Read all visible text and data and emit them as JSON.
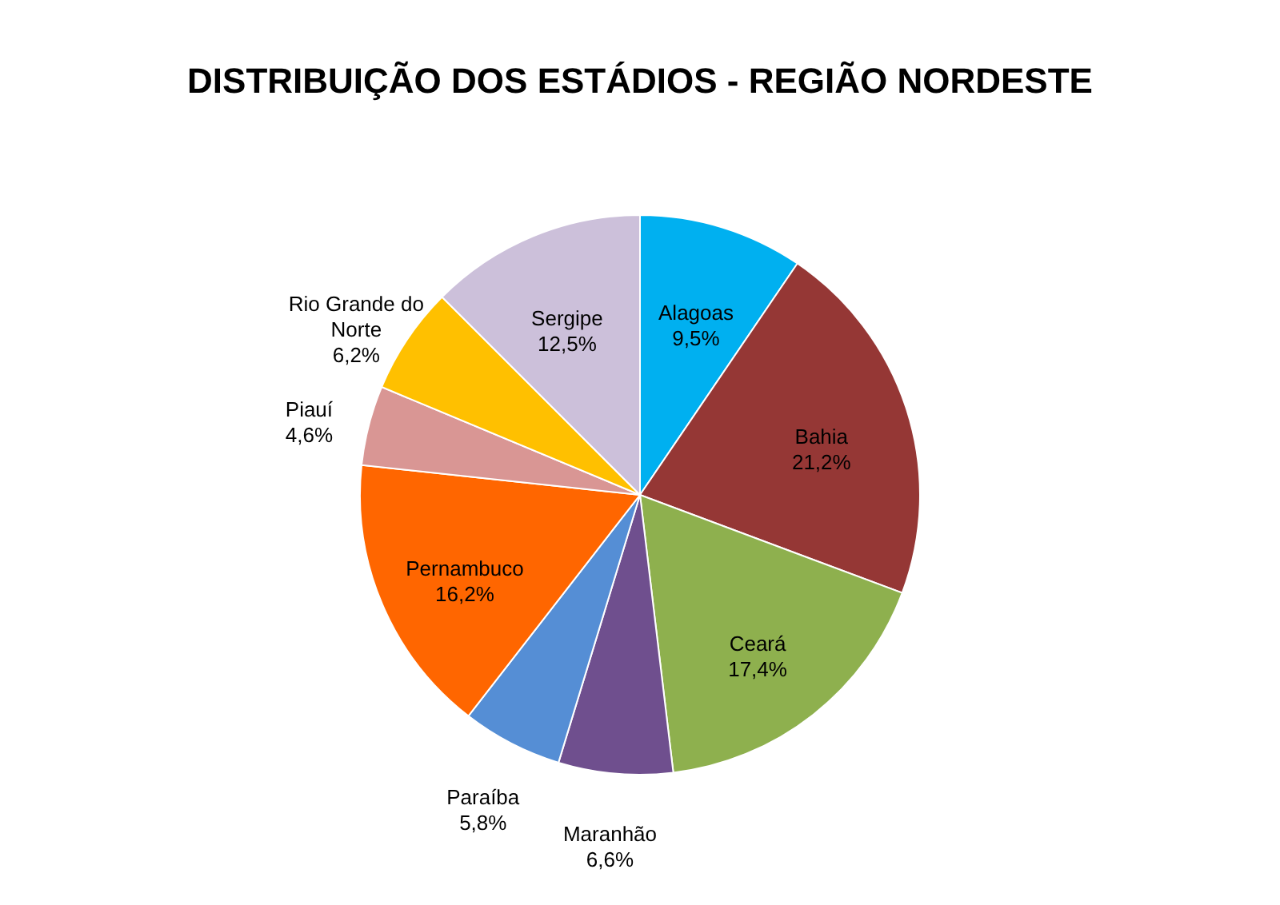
{
  "chart_data": {
    "type": "pie",
    "title": "DISTRIBUIÇÃO DOS ESTÁDIOS - REGIÃO NORDESTE",
    "categories": [
      "Alagoas",
      "Bahia",
      "Ceará",
      "Maranhão",
      "Paraíba",
      "Pernambuco",
      "Piauí",
      "Rio Grande do Norte",
      "Sergipe"
    ],
    "values": [
      9.5,
      21.2,
      17.4,
      6.6,
      5.8,
      16.2,
      4.6,
      6.2,
      12.5
    ],
    "value_labels": [
      "9,5%",
      "21,2%",
      "17,4%",
      "6,6%",
      "5,8%",
      "16,2%",
      "4,6%",
      "6,2%",
      "12,5%"
    ],
    "colors": [
      "#00b0f0",
      "#953735",
      "#8eb04e",
      "#6f4f8e",
      "#558ed5",
      "#ff6600",
      "#d99694",
      "#ffc000",
      "#ccc0da"
    ],
    "legend": false
  }
}
